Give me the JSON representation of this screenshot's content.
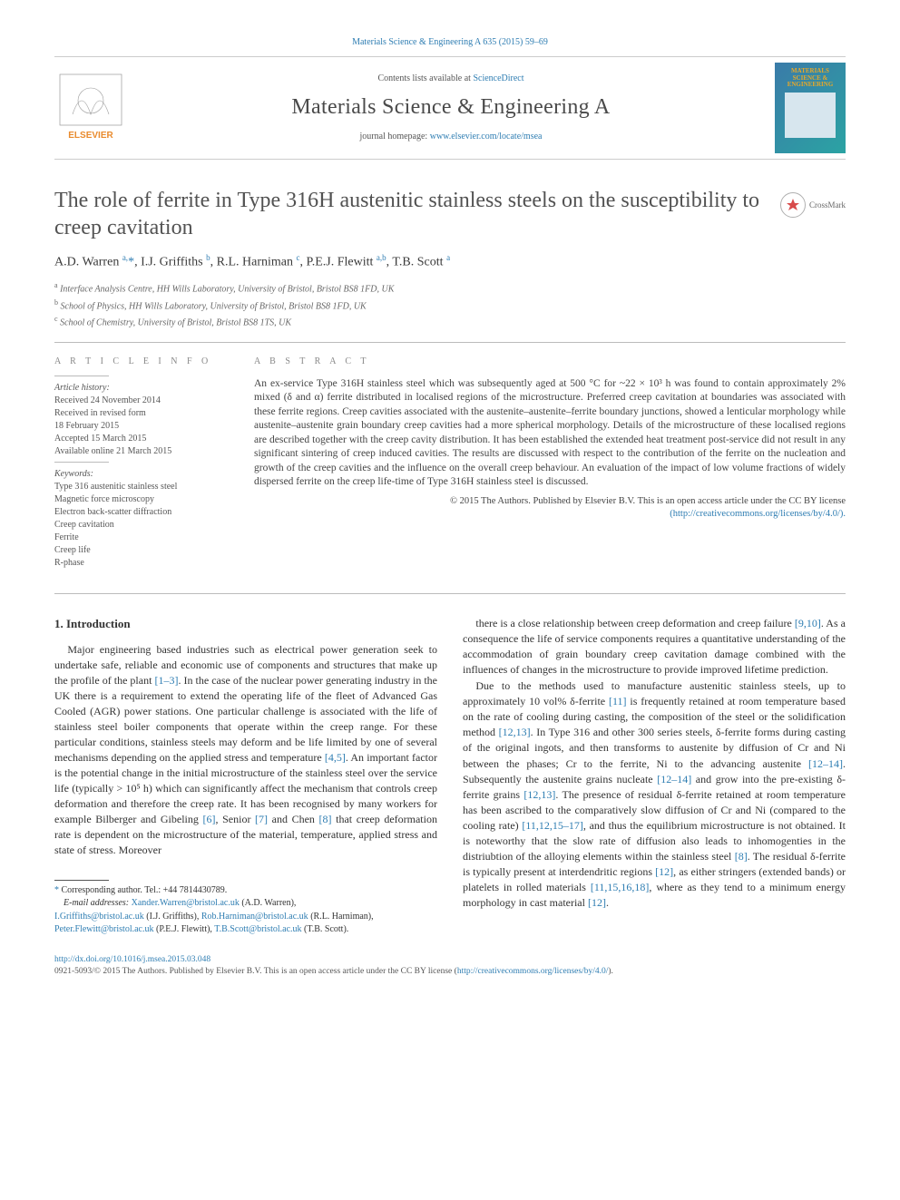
{
  "journal_ref": "Materials Science & Engineering A 635 (2015) 59–69",
  "header": {
    "contents_prefix": "Contents lists available at ",
    "contents_link": "ScienceDirect",
    "journal_name": "Materials Science & Engineering A",
    "homepage_prefix": "journal homepage: ",
    "homepage_link": "www.elsevier.com/locate/msea",
    "cover_lines": [
      "MATERIALS",
      "SCIENCE &",
      "ENGINEERING"
    ],
    "crossmark_label": "CrossMark"
  },
  "title": "The role of ferrite in Type 316H austenitic stainless steels on the susceptibility to creep cavitation",
  "authors_html": "A.D. Warren <sup>a,</sup><span class='star'>*</span>, I.J. Griffiths <sup>b</sup>, R.L. Harniman <sup>c</sup>, P.E.J. Flewitt <sup>a,b</sup>, T.B. Scott <sup>a</sup>",
  "affiliations": [
    {
      "sup": "a",
      "text": "Interface Analysis Centre, HH Wills Laboratory, University of Bristol, Bristol BS8 1FD, UK"
    },
    {
      "sup": "b",
      "text": "School of Physics, HH Wills Laboratory, University of Bristol, Bristol BS8 1FD, UK"
    },
    {
      "sup": "c",
      "text": "School of Chemistry, University of Bristol, Bristol BS8 1TS, UK"
    }
  ],
  "article_info": {
    "heading": "A R T I C L E  I N F O",
    "history_label": "Article history:",
    "history_lines": [
      "Received 24 November 2014",
      "Received in revised form",
      "18 February 2015",
      "Accepted 15 March 2015",
      "Available online 21 March 2015"
    ],
    "keywords_label": "Keywords:",
    "keywords": [
      "Type 316 austenitic stainless steel",
      "Magnetic force microscopy",
      "Electron back-scatter diffraction",
      "Creep cavitation",
      "Ferrite",
      "Creep life",
      "R-phase"
    ]
  },
  "abstract": {
    "heading": "A B S T R A C T",
    "text": "An ex-service Type 316H stainless steel which was subsequently aged at 500 °C for ~22 × 10³ h was found to contain approximately 2% mixed (δ and α) ferrite distributed in localised regions of the microstructure. Preferred creep cavitation at boundaries was associated with these ferrite regions. Creep cavities associated with the austenite–austenite–ferrite boundary junctions, showed a lenticular morphology while austenite–austenite grain boundary creep cavities had a more spherical morphology. Details of the microstructure of these localised regions are described together with the creep cavity distribution. It has been established the extended heat treatment post-service did not result in any significant sintering of creep induced cavities. The results are discussed with respect to the contribution of the ferrite on the nucleation and growth of the creep cavities and the influence on the overall creep behaviour. An evaluation of the impact of low volume fractions of widely dispersed ferrite on the creep life-time of Type 316H stainless steel is discussed.",
    "copyright": "© 2015 The Authors. Published by Elsevier B.V. This is an open access article under the CC BY license",
    "license_url": "(http://creativecommons.org/licenses/by/4.0/)."
  },
  "section_heading": "1. Introduction",
  "para1": "Major engineering based industries such as electrical power generation seek to undertake safe, reliable and economic use of components and structures that make up the profile of the plant [1–3]. In the case of the nuclear power generating industry in the UK there is a requirement to extend the operating life of the fleet of Advanced Gas Cooled (AGR) power stations. One particular challenge is associated with the life of stainless steel boiler components that operate within the creep range. For these particular conditions, stainless steels may deform and be life limited by one of several mechanisms depending on the applied stress and temperature [4,5]. An important factor is the potential change in the initial microstructure of the stainless steel over the service life (typically > 10⁵ h) which can significantly affect the mechanism that controls creep deformation and therefore the creep rate. It has been recognised by many workers for example Bilberger and Gibeling [6], Senior [7] and Chen [8] that creep deformation rate is dependent on the microstructure of the material, temperature, applied stress and state of stress. Moreover",
  "para1b": "there is a close relationship between creep deformation and creep failure [9,10]. As a consequence the life of service components requires a quantitative understanding of the accommodation of grain boundary creep cavitation damage combined with the influences of changes in the microstructure to provide improved lifetime prediction.",
  "para2": "Due to the methods used to manufacture austenitic stainless steels, up to approximately 10 vol% δ-ferrite [11] is frequently retained at room temperature based on the rate of cooling during casting, the composition of the steel or the solidification method [12,13]. In Type 316 and other 300 series steels, δ-ferrite forms during casting of the original ingots, and then transforms to austenite by diffusion of Cr and Ni between the phases; Cr to the ferrite, Ni to the advancing austenite [12–14]. Subsequently the austenite grains nucleate [12–14] and grow into the pre-existing δ-ferrite grains [12,13]. The presence of residual δ-ferrite retained at room temperature has been ascribed to the comparatively slow diffusion of Cr and Ni (compared to the cooling rate) [11,12,15–17], and thus the equilibrium microstructure is not obtained. It is noteworthy that the slow rate of diffusion also leads to inhomogenties in the distriubtion of the alloying elements within the stainless steel [8]. The residual δ-ferrite is typically present at interdendritic regions [12], as either stringers (extended bands) or platelets in rolled materials [11,15,16,18], where as they tend to a minimum energy morphology in cast material [12].",
  "footnotes": {
    "corr_label": "Corresponding author. Tel.: ",
    "corr_tel": "+44 7814430789.",
    "email_label": "E-mail addresses: ",
    "emails": [
      {
        "addr": "Xander.Warren@bristol.ac.uk",
        "who": "(A.D. Warren),"
      },
      {
        "addr": "I.Griffiths@bristol.ac.uk",
        "who": "(I.J. Griffiths),"
      },
      {
        "addr": "Rob.Harniman@bristol.ac.uk",
        "who": "(R.L. Harniman),"
      },
      {
        "addr": "Peter.Flewitt@bristol.ac.uk",
        "who": "(P.E.J. Flewitt),"
      },
      {
        "addr": "T.B.Scott@bristol.ac.uk",
        "who": "(T.B. Scott)."
      }
    ]
  },
  "bottom": {
    "doi": "http://dx.doi.org/10.1016/j.msea.2015.03.048",
    "line": "0921-5093/© 2015 The Authors. Published by Elsevier B.V. This is an open access article under the CC BY license (",
    "license": "http://creativecommons.org/licenses/by/4.0/",
    "close": ")."
  },
  "refs": [
    "[1–3]",
    "[4,5]",
    "[6]",
    "[7]",
    "[8]",
    "[9,10]",
    "[11]",
    "[12,13]",
    "[12–14]",
    "[12–14]",
    "[12,13]",
    "[11,12,15–17]",
    "[8]",
    "[12]",
    "[11,15,16,18]",
    "[12]"
  ]
}
